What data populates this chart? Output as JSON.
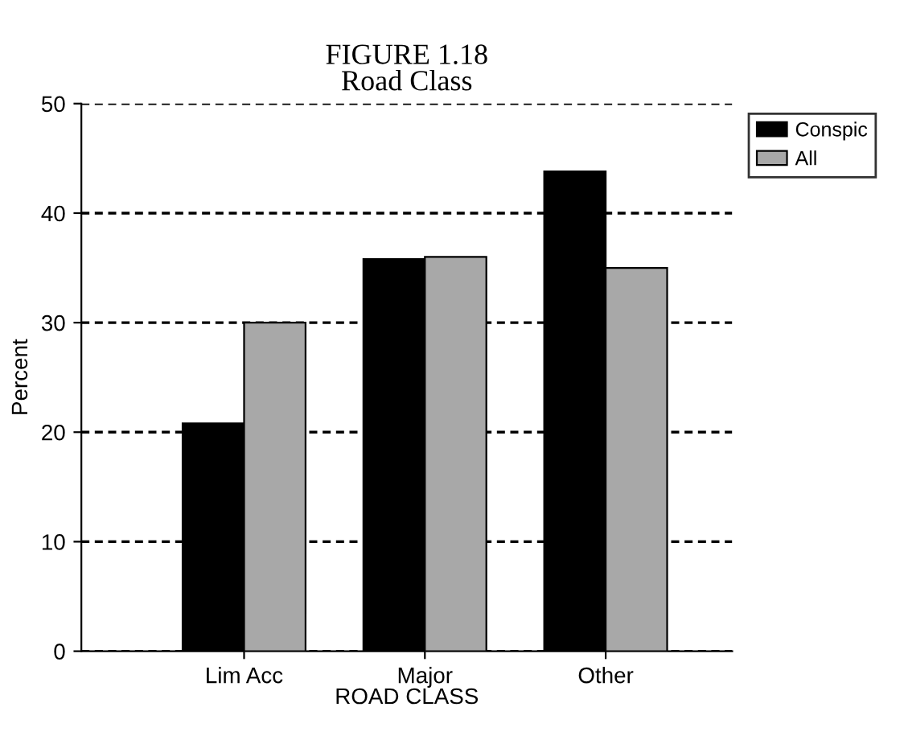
{
  "chart_data": {
    "type": "bar",
    "title": "FIGURE 1.18\nRoad Class",
    "xlabel": "ROAD CLASS",
    "ylabel": "Percent",
    "categories": [
      "Lim Acc",
      "Major",
      "Other"
    ],
    "series": [
      {
        "name": "Conspic",
        "color": "#000000",
        "values": [
          20.8,
          35.8,
          43.8
        ]
      },
      {
        "name": "All",
        "color": "#a8a8a8",
        "values": [
          30,
          36,
          35
        ]
      }
    ],
    "ylim": [
      0,
      50
    ],
    "yticks": [
      0,
      10,
      20,
      30,
      40,
      50
    ],
    "grid": "y",
    "legend": "top right"
  }
}
